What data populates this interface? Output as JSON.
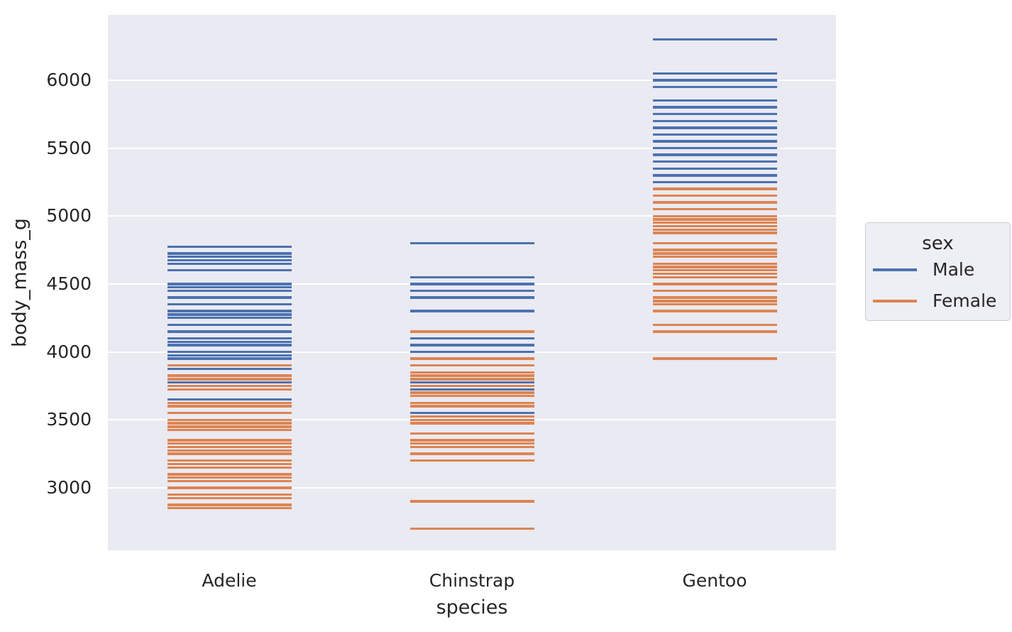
{
  "figure": {
    "background": "#ffffff",
    "axes_background": "#eaeaf2",
    "grid_color": "#ffffff",
    "text_color": "#262626"
  },
  "y_axis": {
    "label": "body_mass_g",
    "ticks": [
      3000,
      3500,
      4000,
      4500,
      5000,
      5500,
      6000
    ]
  },
  "x_axis": {
    "label": "species",
    "categories": [
      "Adelie",
      "Chinstrap",
      "Gentoo"
    ]
  },
  "legend": {
    "title": "sex",
    "entries": [
      {
        "label": "Male",
        "color": "#4c72b0"
      },
      {
        "label": "Female",
        "color": "#dd8452"
      }
    ]
  },
  "chart_data": {
    "type": "scatter",
    "marker": "horizontal-line",
    "title": "",
    "xlabel": "species",
    "ylabel": "body_mass_g",
    "ylim": [
      2540,
      6480
    ],
    "grid": true,
    "legend_position": "right-outside",
    "categories": [
      "Adelie",
      "Chinstrap",
      "Gentoo"
    ],
    "series": [
      {
        "name": "Male",
        "color": "#4c72b0",
        "values": {
          "Adelie": [
            4775,
            4725,
            4700,
            4675,
            4650,
            4600,
            4500,
            4475,
            4450,
            4400,
            4350,
            4300,
            4275,
            4250,
            4200,
            4150,
            4100,
            4075,
            4050,
            4000,
            3975,
            3950,
            3875,
            3775,
            3650
          ],
          "Chinstrap": [
            4800,
            4550,
            4500,
            4450,
            4400,
            4300,
            4100,
            4050,
            4000,
            3775,
            3725,
            3550
          ],
          "Gentoo": [
            6300,
            6050,
            6000,
            5950,
            5850,
            5800,
            5750,
            5700,
            5650,
            5600,
            5550,
            5500,
            5450,
            5400,
            5350,
            5300,
            5250
          ]
        }
      },
      {
        "name": "Female",
        "color": "#dd8452",
        "values": {
          "Adelie": [
            3900,
            3825,
            3800,
            3750,
            3725,
            3625,
            3600,
            3550,
            3500,
            3475,
            3450,
            3425,
            3350,
            3325,
            3300,
            3275,
            3250,
            3200,
            3175,
            3150,
            3100,
            3075,
            3050,
            3000,
            2950,
            2925,
            2875,
            2850
          ],
          "Chinstrap": [
            4150,
            3950,
            3900,
            3850,
            3825,
            3800,
            3750,
            3700,
            3675,
            3625,
            3600,
            3525,
            3500,
            3475,
            3400,
            3350,
            3325,
            3300,
            3250,
            3200,
            2900,
            2700
          ],
          "Gentoo": [
            5200,
            5150,
            5100,
            5050,
            5000,
            4975,
            4950,
            4925,
            4900,
            4875,
            4800,
            4750,
            4725,
            4700,
            4650,
            4625,
            4600,
            4575,
            4550,
            4500,
            4450,
            4400,
            4375,
            4350,
            4300,
            4200,
            4150,
            3950
          ]
        }
      }
    ]
  }
}
